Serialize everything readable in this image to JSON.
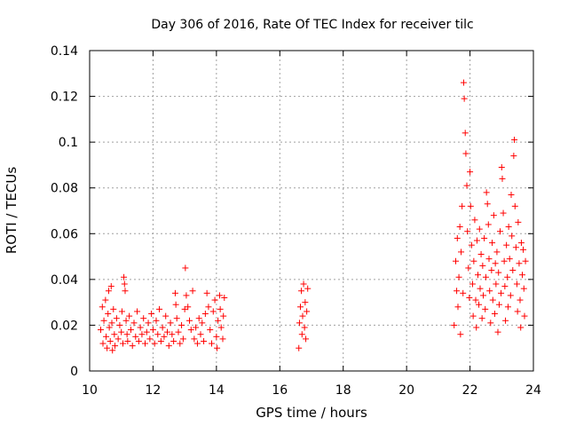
{
  "chart_data": {
    "type": "scatter",
    "title": "Day 306 of 2016, Rate Of TEC Index for receiver tilc",
    "xlabel": "GPS time / hours",
    "ylabel": "ROTI / TECUs",
    "xlim": [
      10,
      24
    ],
    "ylim": [
      0,
      0.14
    ],
    "xticks": [
      10,
      12,
      14,
      16,
      18,
      20,
      22,
      24
    ],
    "yticks": [
      0,
      0.02,
      0.04,
      0.06,
      0.08,
      0.1,
      0.12,
      0.14
    ],
    "ytick_labels": [
      "0",
      "0.02",
      "0.04",
      "0.06",
      "0.08",
      "0.1",
      "0.12",
      "0.14"
    ],
    "grid": true,
    "marker": "+",
    "color": "#ff0000",
    "series": [
      {
        "name": "ROTI",
        "points": [
          [
            10.35,
            0.018
          ],
          [
            10.4,
            0.028
          ],
          [
            10.42,
            0.012
          ],
          [
            10.45,
            0.022
          ],
          [
            10.5,
            0.031
          ],
          [
            10.52,
            0.015
          ],
          [
            10.55,
            0.01
          ],
          [
            10.58,
            0.025
          ],
          [
            10.6,
            0.035
          ],
          [
            10.62,
            0.019
          ],
          [
            10.65,
            0.013
          ],
          [
            10.68,
            0.037
          ],
          [
            10.7,
            0.021
          ],
          [
            10.72,
            0.009
          ],
          [
            10.75,
            0.027
          ],
          [
            10.78,
            0.016
          ],
          [
            10.8,
            0.011
          ],
          [
            10.85,
            0.023
          ],
          [
            10.9,
            0.014
          ],
          [
            10.95,
            0.02
          ],
          [
            11.0,
            0.017
          ],
          [
            11.02,
            0.026
          ],
          [
            11.05,
            0.012
          ],
          [
            11.08,
            0.041
          ],
          [
            11.1,
            0.038
          ],
          [
            11.12,
            0.035
          ],
          [
            11.15,
            0.022
          ],
          [
            11.18,
            0.016
          ],
          [
            11.2,
            0.013
          ],
          [
            11.25,
            0.024
          ],
          [
            11.3,
            0.018
          ],
          [
            11.35,
            0.011
          ],
          [
            11.4,
            0.021
          ],
          [
            11.45,
            0.015
          ],
          [
            11.5,
            0.026
          ],
          [
            11.55,
            0.013
          ],
          [
            11.6,
            0.019
          ],
          [
            11.65,
            0.016
          ],
          [
            11.7,
            0.023
          ],
          [
            11.75,
            0.012
          ],
          [
            11.8,
            0.017
          ],
          [
            11.85,
            0.021
          ],
          [
            11.9,
            0.014
          ],
          [
            11.95,
            0.025
          ],
          [
            12.0,
            0.018
          ],
          [
            12.05,
            0.012
          ],
          [
            12.1,
            0.022
          ],
          [
            12.15,
            0.016
          ],
          [
            12.2,
            0.027
          ],
          [
            12.25,
            0.013
          ],
          [
            12.3,
            0.019
          ],
          [
            12.35,
            0.015
          ],
          [
            12.4,
            0.024
          ],
          [
            12.45,
            0.017
          ],
          [
            12.5,
            0.011
          ],
          [
            12.55,
            0.021
          ],
          [
            12.6,
            0.016
          ],
          [
            12.65,
            0.013
          ],
          [
            12.7,
            0.034
          ],
          [
            12.72,
            0.029
          ],
          [
            12.75,
            0.023
          ],
          [
            12.8,
            0.017
          ],
          [
            12.85,
            0.012
          ],
          [
            12.9,
            0.02
          ],
          [
            12.95,
            0.014
          ],
          [
            13.0,
            0.027
          ],
          [
            13.02,
            0.045
          ],
          [
            13.05,
            0.033
          ],
          [
            13.1,
            0.028
          ],
          [
            13.15,
            0.022
          ],
          [
            13.2,
            0.018
          ],
          [
            13.25,
            0.035
          ],
          [
            13.3,
            0.014
          ],
          [
            13.35,
            0.019
          ],
          [
            13.4,
            0.012
          ],
          [
            13.45,
            0.023
          ],
          [
            13.5,
            0.016
          ],
          [
            13.55,
            0.021
          ],
          [
            13.6,
            0.013
          ],
          [
            13.65,
            0.025
          ],
          [
            13.7,
            0.034
          ],
          [
            13.75,
            0.028
          ],
          [
            13.8,
            0.018
          ],
          [
            13.85,
            0.012
          ],
          [
            13.9,
            0.026
          ],
          [
            13.95,
            0.031
          ],
          [
            14.0,
            0.015
          ],
          [
            14.02,
            0.01
          ],
          [
            14.05,
            0.022
          ],
          [
            14.1,
            0.033
          ],
          [
            14.12,
            0.027
          ],
          [
            14.15,
            0.019
          ],
          [
            14.2,
            0.014
          ],
          [
            14.22,
            0.024
          ],
          [
            14.25,
            0.032
          ],
          [
            16.6,
            0.01
          ],
          [
            16.62,
            0.021
          ],
          [
            16.65,
            0.028
          ],
          [
            16.68,
            0.035
          ],
          [
            16.7,
            0.016
          ],
          [
            16.72,
            0.024
          ],
          [
            16.75,
            0.038
          ],
          [
            16.78,
            0.019
          ],
          [
            16.8,
            0.03
          ],
          [
            16.82,
            0.014
          ],
          [
            16.85,
            0.026
          ],
          [
            16.88,
            0.036
          ],
          [
            21.5,
            0.02
          ],
          [
            21.55,
            0.048
          ],
          [
            21.58,
            0.035
          ],
          [
            21.6,
            0.058
          ],
          [
            21.62,
            0.028
          ],
          [
            21.65,
            0.041
          ],
          [
            21.68,
            0.063
          ],
          [
            21.7,
            0.016
          ],
          [
            21.72,
            0.052
          ],
          [
            21.75,
            0.072
          ],
          [
            21.78,
            0.034
          ],
          [
            21.8,
            0.126
          ],
          [
            21.82,
            0.119
          ],
          [
            21.85,
            0.104
          ],
          [
            21.87,
            0.095
          ],
          [
            21.9,
            0.081
          ],
          [
            21.92,
            0.061
          ],
          [
            21.95,
            0.045
          ],
          [
            21.98,
            0.032
          ],
          [
            22.0,
            0.087
          ],
          [
            22.02,
            0.072
          ],
          [
            22.05,
            0.055
          ],
          [
            22.08,
            0.038
          ],
          [
            22.1,
            0.024
          ],
          [
            22.12,
            0.048
          ],
          [
            22.15,
            0.066
          ],
          [
            22.18,
            0.031
          ],
          [
            22.2,
            0.019
          ],
          [
            22.22,
            0.057
          ],
          [
            22.25,
            0.042
          ],
          [
            22.28,
            0.029
          ],
          [
            22.3,
            0.062
          ],
          [
            22.32,
            0.036
          ],
          [
            22.35,
            0.051
          ],
          [
            22.38,
            0.023
          ],
          [
            22.4,
            0.046
          ],
          [
            22.42,
            0.033
          ],
          [
            22.45,
            0.058
          ],
          [
            22.48,
            0.027
          ],
          [
            22.5,
            0.041
          ],
          [
            22.52,
            0.078
          ],
          [
            22.55,
            0.073
          ],
          [
            22.58,
            0.064
          ],
          [
            22.6,
            0.049
          ],
          [
            22.62,
            0.035
          ],
          [
            22.65,
            0.021
          ],
          [
            22.68,
            0.044
          ],
          [
            22.7,
            0.056
          ],
          [
            22.72,
            0.031
          ],
          [
            22.75,
            0.068
          ],
          [
            22.78,
            0.025
          ],
          [
            22.8,
            0.047
          ],
          [
            22.82,
            0.038
          ],
          [
            22.85,
            0.052
          ],
          [
            22.88,
            0.017
          ],
          [
            22.9,
            0.043
          ],
          [
            22.92,
            0.029
          ],
          [
            22.95,
            0.061
          ],
          [
            22.98,
            0.034
          ],
          [
            23.0,
            0.089
          ],
          [
            23.02,
            0.084
          ],
          [
            23.05,
            0.069
          ],
          [
            23.08,
            0.048
          ],
          [
            23.1,
            0.037
          ],
          [
            23.12,
            0.022
          ],
          [
            23.15,
            0.055
          ],
          [
            23.18,
            0.041
          ],
          [
            23.2,
            0.028
          ],
          [
            23.22,
            0.063
          ],
          [
            23.25,
            0.049
          ],
          [
            23.28,
            0.033
          ],
          [
            23.3,
            0.077
          ],
          [
            23.32,
            0.059
          ],
          [
            23.35,
            0.044
          ],
          [
            23.38,
            0.094
          ],
          [
            23.4,
            0.101
          ],
          [
            23.42,
            0.072
          ],
          [
            23.45,
            0.054
          ],
          [
            23.48,
            0.038
          ],
          [
            23.5,
            0.026
          ],
          [
            23.52,
            0.065
          ],
          [
            23.55,
            0.047
          ],
          [
            23.58,
            0.031
          ],
          [
            23.6,
            0.019
          ],
          [
            23.62,
            0.056
          ],
          [
            23.65,
            0.042
          ],
          [
            23.68,
            0.053
          ],
          [
            23.7,
            0.036
          ],
          [
            23.72,
            0.024
          ],
          [
            23.75,
            0.048
          ]
        ]
      }
    ]
  }
}
